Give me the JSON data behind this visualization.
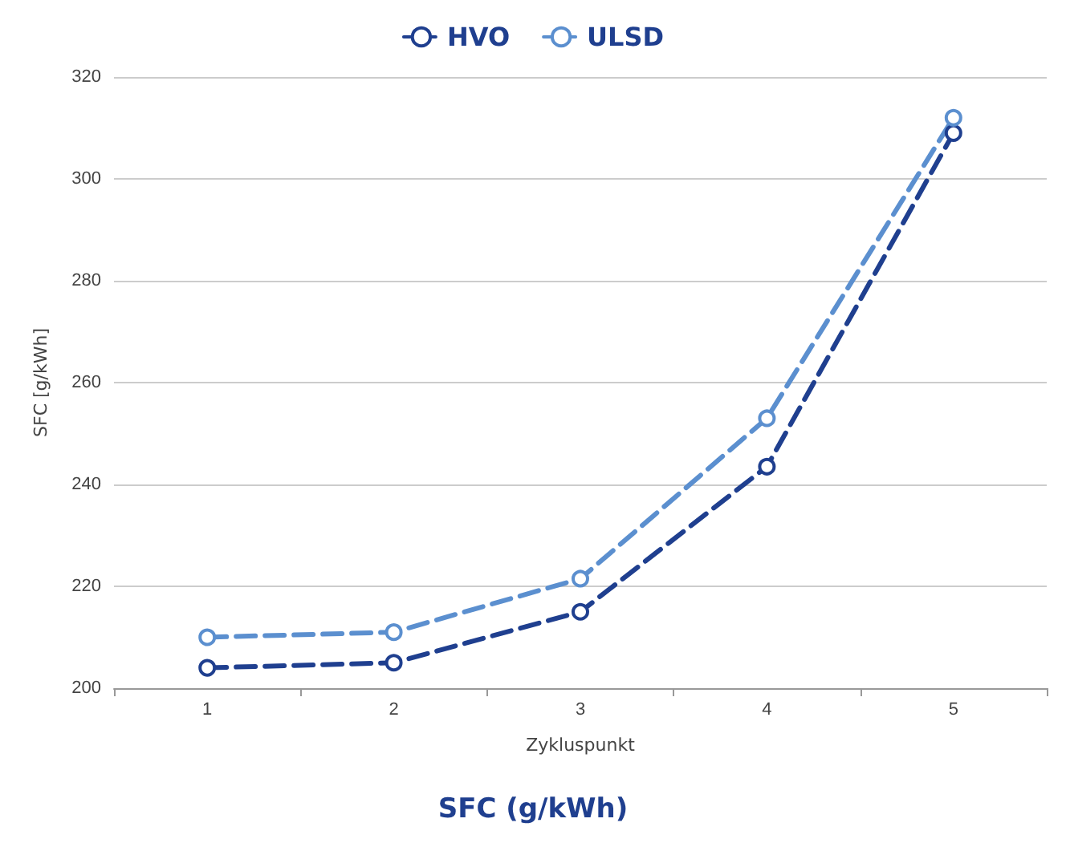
{
  "chart_data": {
    "type": "line",
    "title": "SFC (g/kWh)",
    "xlabel": "Zykluspunkt",
    "ylabel": "SFC [g/kWh]",
    "categories": [
      "1",
      "2",
      "3",
      "4",
      "5"
    ],
    "series": [
      {
        "name": "HVO",
        "color": "#1f3f8f",
        "values": [
          204,
          205,
          215,
          243.5,
          309
        ]
      },
      {
        "name": "ULSD",
        "color": "#5b8fcf",
        "values": [
          210,
          211,
          221.5,
          253,
          312
        ]
      }
    ],
    "ylim": [
      200,
      320
    ],
    "yticks": [
      200,
      220,
      240,
      260,
      280,
      300,
      320
    ],
    "grid": "y",
    "legend": "top",
    "marker": "circle",
    "line_style": "dashed"
  }
}
